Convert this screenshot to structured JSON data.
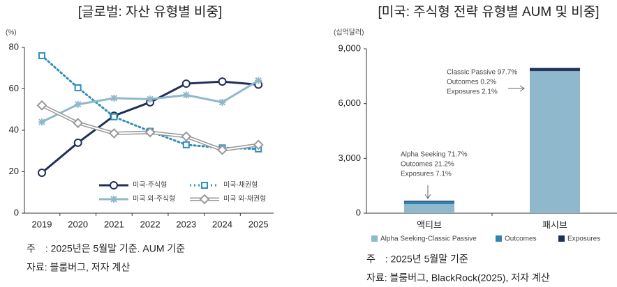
{
  "chart_data": [
    {
      "type": "line",
      "title": "[글로벌: 자산 유형별 비중]",
      "y_unit": "(%)",
      "categories": [
        "2019",
        "2020",
        "2021",
        "2022",
        "2023",
        "2024",
        "2025"
      ],
      "ylim": [
        0,
        80
      ],
      "yticks": [
        0,
        20,
        40,
        60,
        80
      ],
      "series": [
        {
          "name": "미국-주식형",
          "color": "#1f2f5a",
          "marker": "circle",
          "line_style": "solid",
          "values": [
            19.5,
            34,
            47,
            53.5,
            62.5,
            63.5,
            62
          ]
        },
        {
          "name": "미국-채권형",
          "color": "#2e8fb8",
          "marker": "square",
          "line_style": "dotted",
          "values": [
            76,
            60.5,
            46.5,
            39.5,
            33,
            31.5,
            31
          ]
        },
        {
          "name": "미국 외-주식형",
          "color": "#8fb8cc",
          "marker": "star",
          "line_style": "solid",
          "values": [
            44,
            52.5,
            55.5,
            55,
            57,
            53.5,
            64
          ]
        },
        {
          "name": "미국 외-채권형",
          "color": "#999999",
          "marker": "diamond",
          "line_style": "double",
          "values": [
            52,
            43.5,
            38.5,
            39,
            37,
            30.5,
            33
          ]
        }
      ],
      "notes": [
        "주　: 2025년은 5월말 기준. AUM 기준",
        "자료: 블룸버그, 저자 계산"
      ]
    },
    {
      "type": "stacked_bar",
      "title": "[미국: 주식형 전략 유형별 AUM 및 비중]",
      "y_unit": "(십억달러)",
      "categories": [
        "액티브",
        "패시브"
      ],
      "ylim": [
        0,
        9000
      ],
      "yticks": [
        0,
        {
          "value": 3000,
          "label": "3,000"
        },
        {
          "value": 6000,
          "label": "6,000"
        },
        {
          "value": 9000,
          "label": "9,000"
        }
      ],
      "series": [
        {
          "name": "Alpha Seeking-Classic Passive",
          "color": "#8fb8cc",
          "values": [
            488,
            7767
          ]
        },
        {
          "name": "Outcomes",
          "color": "#2e86b0",
          "values": [
            144,
            16
          ]
        },
        {
          "name": "Exposures",
          "color": "#1f2f5a",
          "values": [
            48,
            167
          ]
        }
      ],
      "annotations": [
        [
          "Alpha Seeking 71.7%",
          "Outcomes 21.2%",
          "Exposures 7.1%"
        ],
        [
          "Classic Passive 97.7%",
          "Outcomes 0.2%",
          "Exposures 2.1%"
        ]
      ],
      "notes": [
        "주　: 2025년 5월말 기준",
        "자료: 블룸버그, BlackRock(2025), 저자 계산"
      ]
    }
  ]
}
